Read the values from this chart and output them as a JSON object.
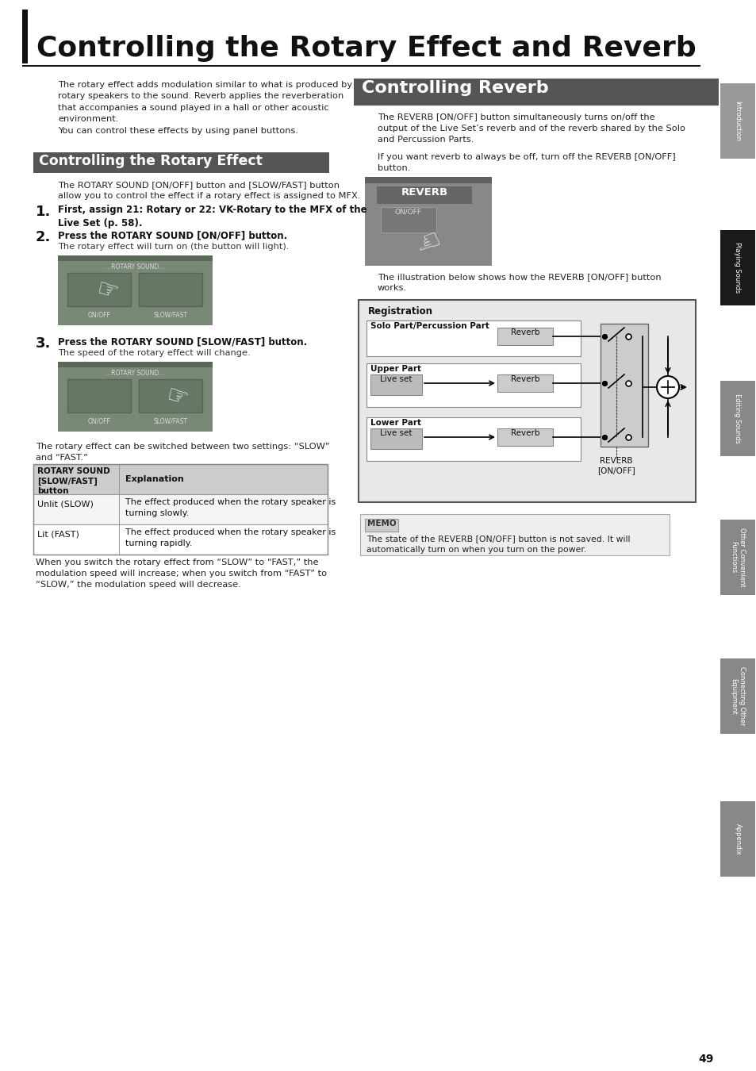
{
  "page_title": "Controlling the Rotary Effect and Reverb",
  "page_number": "49",
  "bg_color": "#ffffff",
  "section1_bar_color": "#555555",
  "section2_bar_color": "#555555",
  "tab_labels": [
    "Introduction",
    "Playing Sounds",
    "Editing Sounds",
    "Other Convenient\nFunctions",
    "Connecting Other\nEquipment",
    "Appendix"
  ],
  "tab_colors": [
    "#999999",
    "#1a1a1a",
    "#888888",
    "#888888",
    "#888888",
    "#888888"
  ],
  "intro_text": "The rotary effect adds modulation similar to what is produced by\nrotary speakers to the sound. Reverb applies the reverberation\nthat accompanies a sound played in a hall or other acoustic\nenvironment.\nYou can control these effects by using panel buttons.",
  "section1_title": "Controlling the Rotary Effect",
  "section1_intro": "The ROTARY SOUND [ON/OFF] button and [SLOW/FAST] button\nallow you to control the effect if a rotary effect is assigned to MFX.",
  "step1_num": "1.",
  "step1_text": "First, assign 21: Rotary or 22: VK-Rotary to the MFX of the\nLive Set (p. 58).",
  "step2_num": "2.",
  "step2_bold": "Press the ROTARY SOUND [ON/OFF] button.",
  "step2_text": "The rotary effect will turn on (the button will light).",
  "step3_num": "3.",
  "step3_bold": "Press the ROTARY SOUND [SLOW/FAST] button.",
  "step3_text": "The speed of the rotary effect will change.",
  "below_images_text": "The rotary effect can be switched between two settings: “SLOW”\nand “FAST.”",
  "table_col1_header": "ROTARY SOUND\n[SLOW/FAST]\nbutton",
  "table_col2_header": "Explanation",
  "table_row1_col1": "Unlit (SLOW)",
  "table_row1_col2": "The effect produced when the rotary speaker is\nturning slowly.",
  "table_row2_col1": "Lit (FAST)",
  "table_row2_col2": "The effect produced when the rotary speaker is\nturning rapidly.",
  "below_table_text": "When you switch the rotary effect from “SLOW” to “FAST,” the\nmodulation speed will increase; when you switch from “FAST” to\n“SLOW,” the modulation speed will decrease.",
  "section2_title": "Controlling Reverb",
  "section2_intro1": "The REVERB [ON/OFF] button simultaneously turns on/off the\noutput of the Live Set’s reverb and of the reverb shared by the Solo\nand Percussion Parts.",
  "section2_intro2": "If you want reverb to always be off, turn off the REVERB [ON/OFF]\nbutton.",
  "diag_caption": "The illustration below shows how the REVERB [ON/OFF] button\nworks.",
  "diag_title": "Registration",
  "diag_row1": "Solo Part/Percussion Part",
  "diag_row2": "Upper Part",
  "diag_row3": "Lower Part",
  "diag_live": "Live set",
  "diag_reverb": "Reverb",
  "diag_reverb_label": "REVERB\n[ON/OFF]",
  "memo_label": "MEMO",
  "memo_text": "The state of the REVERB [ON/OFF] button is not saved. It will\nautomatically turn on when you turn on the power.",
  "panel_bg": "#7a8878",
  "panel_stripe": "#5a6858",
  "panel_btn": "#6a7868",
  "panel_text_color": "#d8dcd6",
  "reverb_panel_bg": "#888888",
  "reverb_bar_bg": "#666666",
  "reverb_btn_bg": "#777777"
}
